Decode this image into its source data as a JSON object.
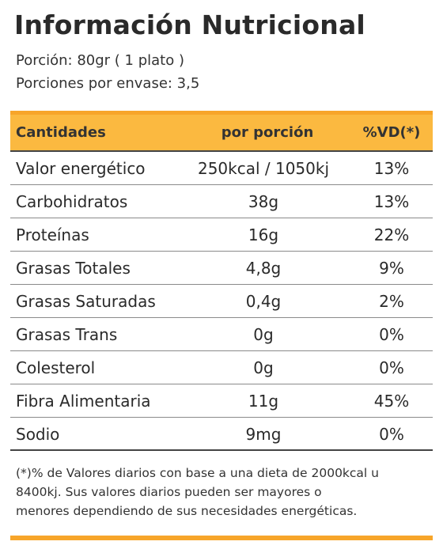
{
  "title": "Información Nutricional",
  "serving": {
    "portion": "Porción: 80gr ( 1 plato )",
    "per_package": "Porciones por envase: 3,5"
  },
  "colors": {
    "header_bg": "#fbb940",
    "rule": "#f7a52a"
  },
  "table": {
    "headers": {
      "name": "Cantidades",
      "per_serving": "por porción",
      "dv": "%VD(*)"
    },
    "rows": [
      {
        "name": "Valor energético",
        "per_serving": "250kcal / 1050kj",
        "dv": "13%"
      },
      {
        "name": "Carbohidratos",
        "per_serving": "38g",
        "dv": "13%"
      },
      {
        "name": "Proteínas",
        "per_serving": "16g",
        "dv": "22%"
      },
      {
        "name": "Grasas Totales",
        "per_serving": "4,8g",
        "dv": "9%"
      },
      {
        "name": "Grasas Saturadas",
        "per_serving": "0,4g",
        "dv": "2%"
      },
      {
        "name": "Grasas Trans",
        "per_serving": "0g",
        "dv": "0%"
      },
      {
        "name": "Colesterol",
        "per_serving": "0g",
        "dv": "0%"
      },
      {
        "name": "Fibra Alimentaria",
        "per_serving": "11g",
        "dv": "45%"
      },
      {
        "name": "Sodio",
        "per_serving": "9mg",
        "dv": "0%"
      }
    ]
  },
  "footnote": {
    "line1": "(*)% de Valores diarios con base a una dieta de 2000kcal u",
    "line2": "8400kj.  Sus valores diarios pueden ser mayores o",
    "line3": "menores dependiendo  de sus necesidades energéticas."
  }
}
